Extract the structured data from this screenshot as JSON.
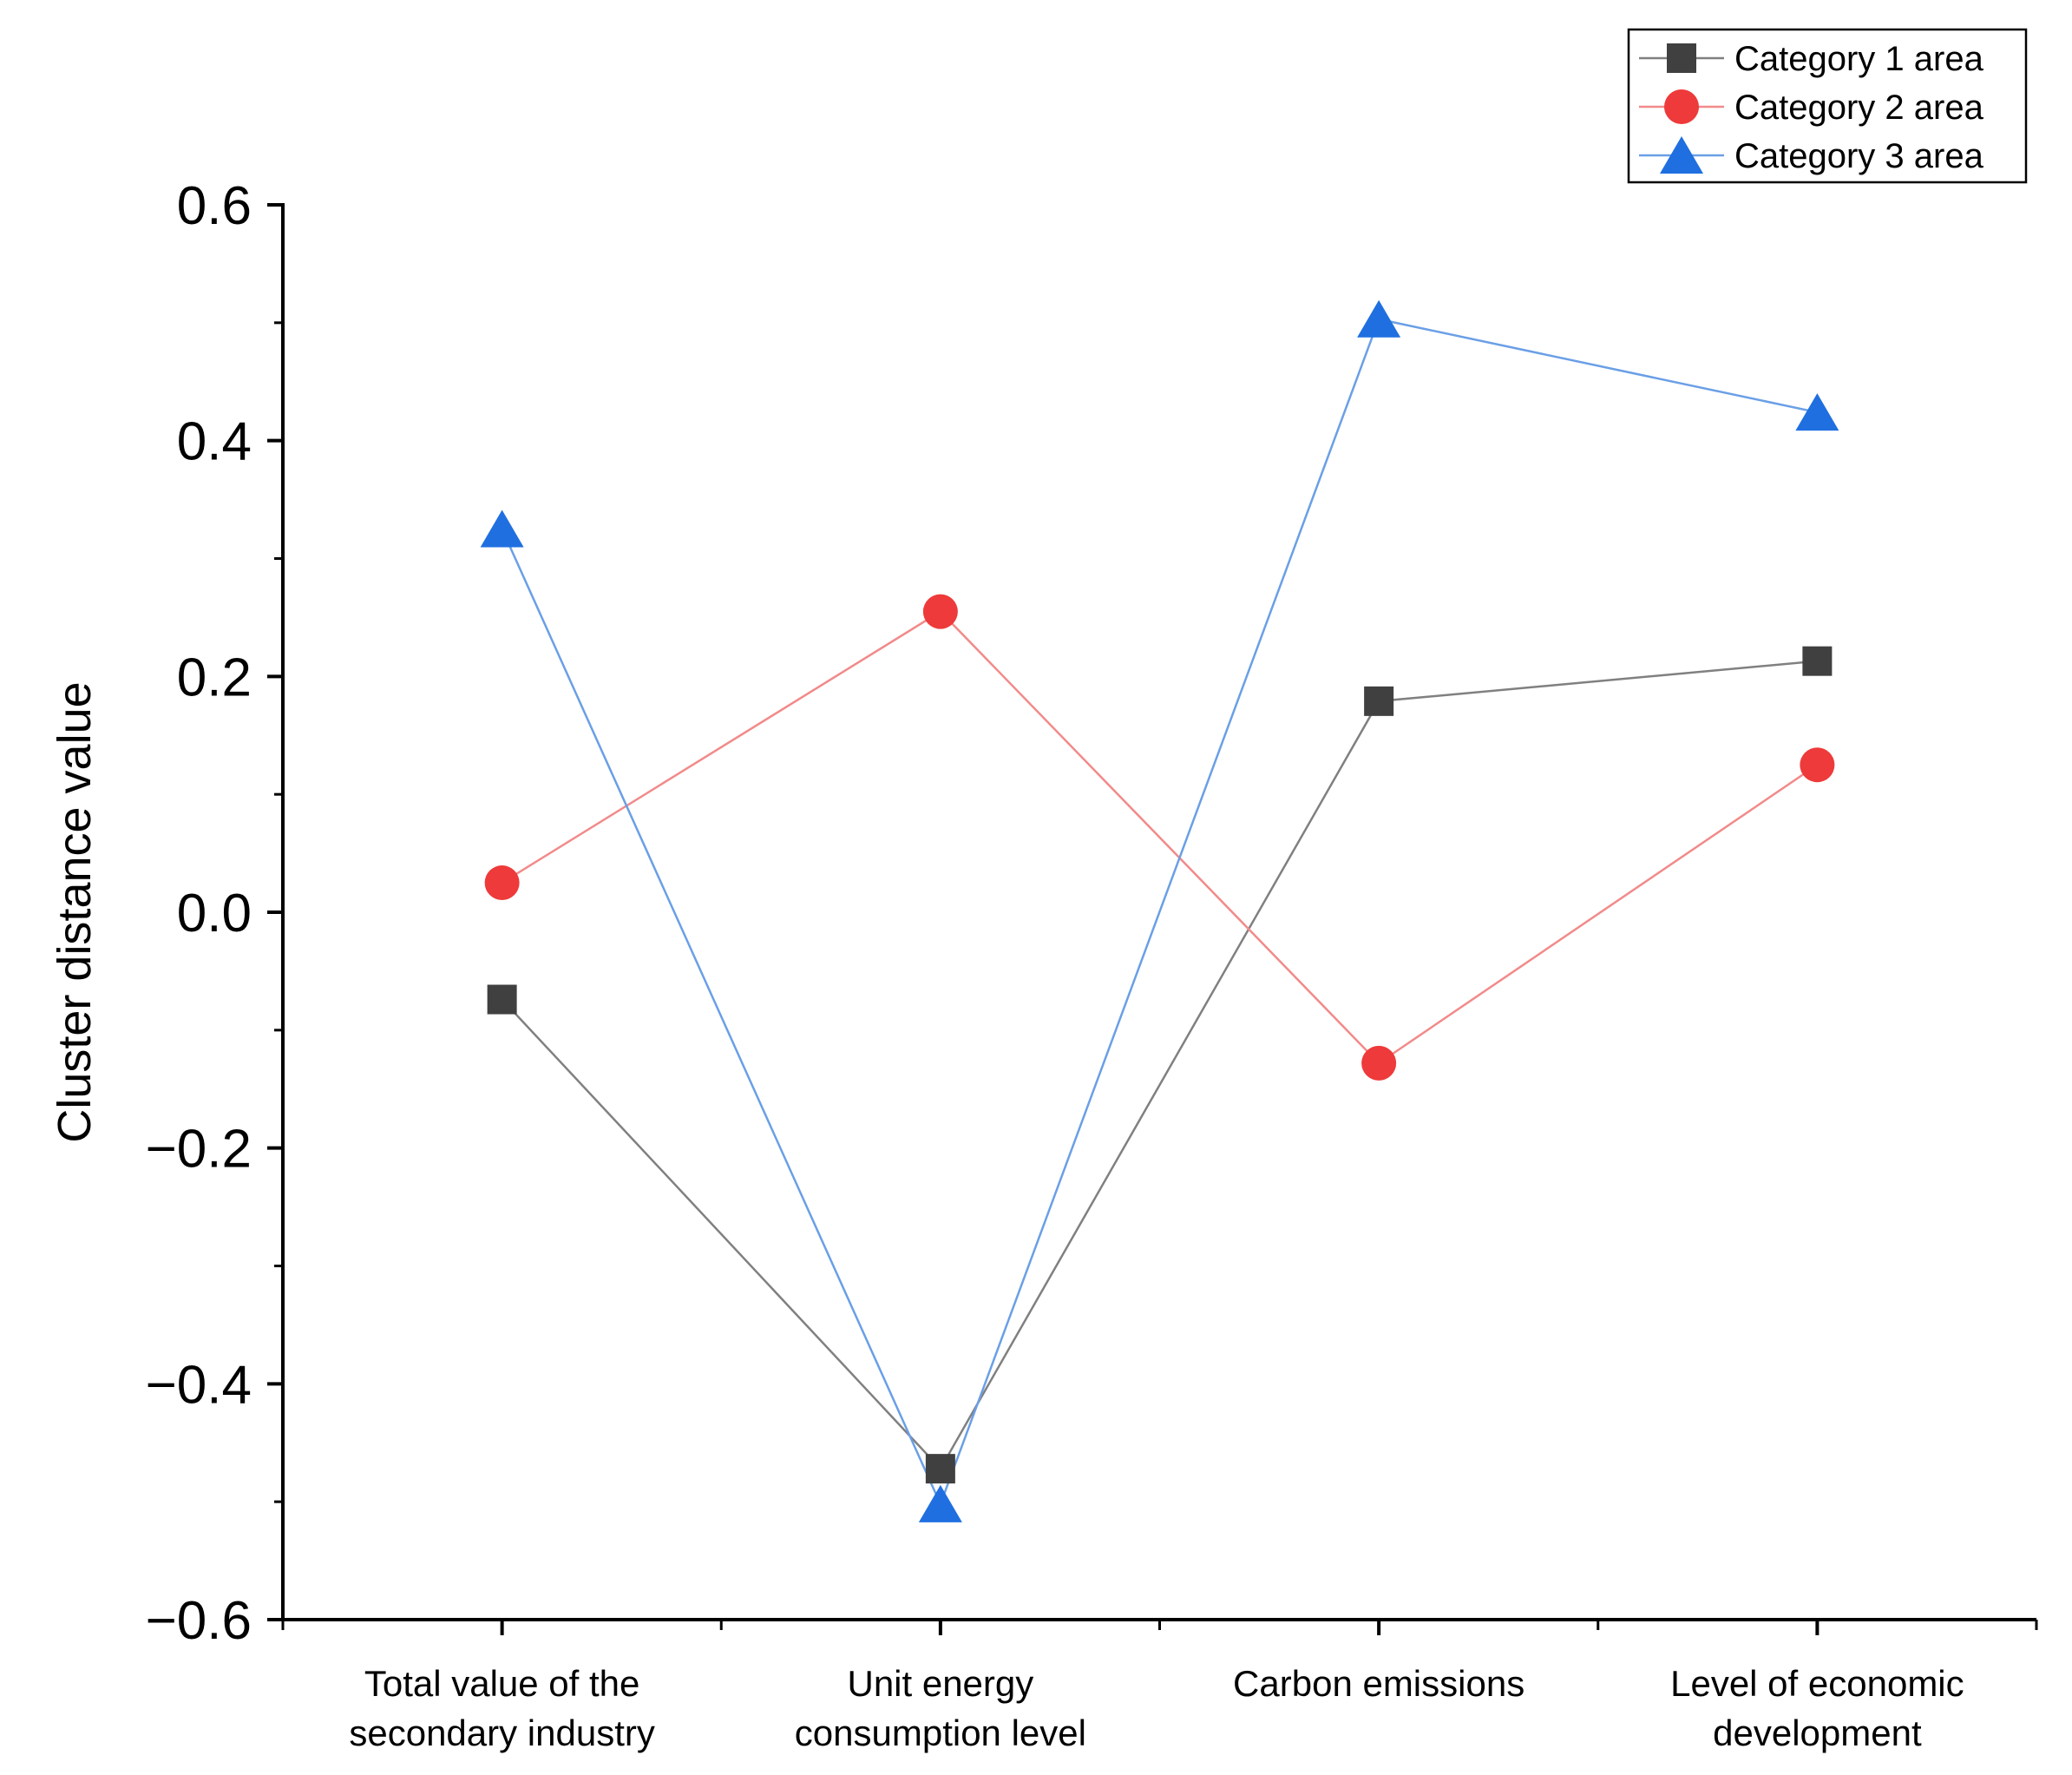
{
  "chart_data": {
    "type": "line",
    "title": "",
    "xlabel": "",
    "ylabel": "Cluster distance value",
    "ylim": [
      -0.6,
      0.6
    ],
    "yticks": [
      -0.6,
      -0.4,
      -0.2,
      0.0,
      0.2,
      0.4,
      0.6
    ],
    "ytick_labels": [
      "−0.6",
      "−0.4",
      "−0.2",
      "0.0",
      "0.2",
      "0.4",
      "0.6"
    ],
    "categories": [
      [
        "Total value of the",
        "secondary industry"
      ],
      [
        "Unit energy",
        "consumption level"
      ],
      [
        "Carbon emissions"
      ],
      [
        "Level of economic",
        "development"
      ]
    ],
    "legend_position": "top-right",
    "grid": false,
    "series": [
      {
        "name": "Category 1 area",
        "color": "#404040",
        "line_color": "#808080",
        "marker": "square",
        "values": [
          -0.074,
          -0.472,
          0.179,
          0.213
        ]
      },
      {
        "name": "Category 2 area",
        "color": "#ee3a3a",
        "line_color": "#f28a8a",
        "marker": "circle",
        "values": [
          0.025,
          0.255,
          -0.128,
          0.125
        ]
      },
      {
        "name": "Category 3 area",
        "color": "#1f6fe0",
        "line_color": "#6a9fe6",
        "marker": "triangle",
        "values": [
          0.325,
          -0.502,
          0.503,
          0.424
        ]
      }
    ]
  }
}
